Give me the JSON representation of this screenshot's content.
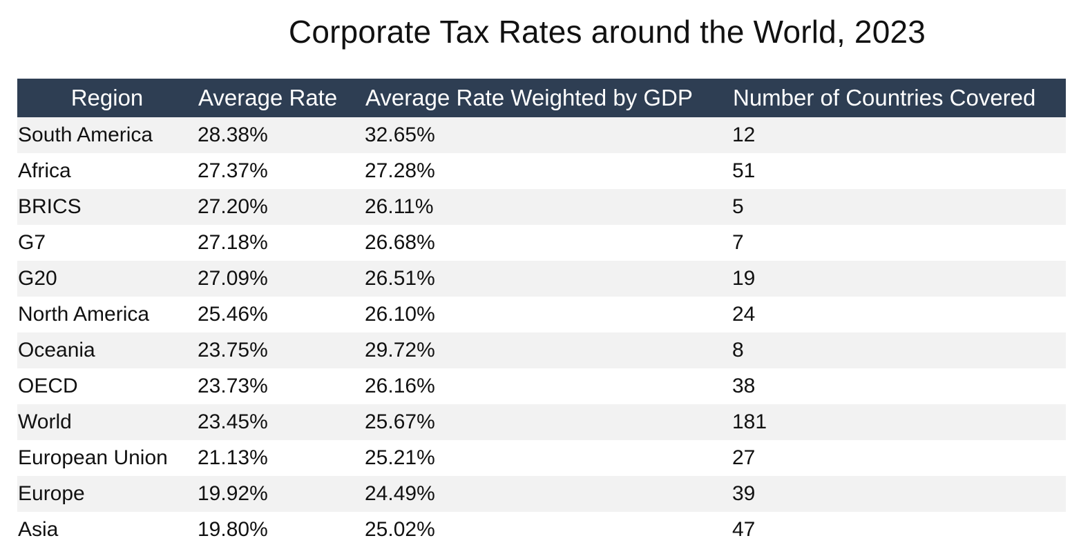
{
  "chart_data": {
    "type": "table",
    "title": "Corporate Tax Rates around the World, 2023",
    "columns": [
      "Region",
      "Average Rate",
      "Average Rate Weighted by GDP",
      "Number of Countries Covered"
    ],
    "rows": [
      [
        "South America",
        "28.38%",
        "32.65%",
        "12"
      ],
      [
        "Africa",
        "27.37%",
        "27.28%",
        "51"
      ],
      [
        "BRICS",
        "27.20%",
        "26.11%",
        "5"
      ],
      [
        "G7",
        "27.18%",
        "26.68%",
        "7"
      ],
      [
        "G20",
        "27.09%",
        "26.51%",
        "19"
      ],
      [
        "North America",
        "25.46%",
        "26.10%",
        "24"
      ],
      [
        "Oceania",
        "23.75%",
        "29.72%",
        "8"
      ],
      [
        "OECD",
        "23.73%",
        "26.16%",
        "38"
      ],
      [
        "World",
        "23.45%",
        "25.67%",
        "181"
      ],
      [
        "European Union",
        "21.13%",
        "25.21%",
        "27"
      ],
      [
        "Europe",
        "19.92%",
        "24.49%",
        "39"
      ],
      [
        "Asia",
        "19.80%",
        "25.02%",
        "47"
      ]
    ]
  },
  "colors": {
    "header_background": "#2e3e53",
    "header_text": "#ffffff",
    "row_band": "#f2f2f2",
    "row_plain": "#ffffff",
    "body_text": "#111111"
  }
}
